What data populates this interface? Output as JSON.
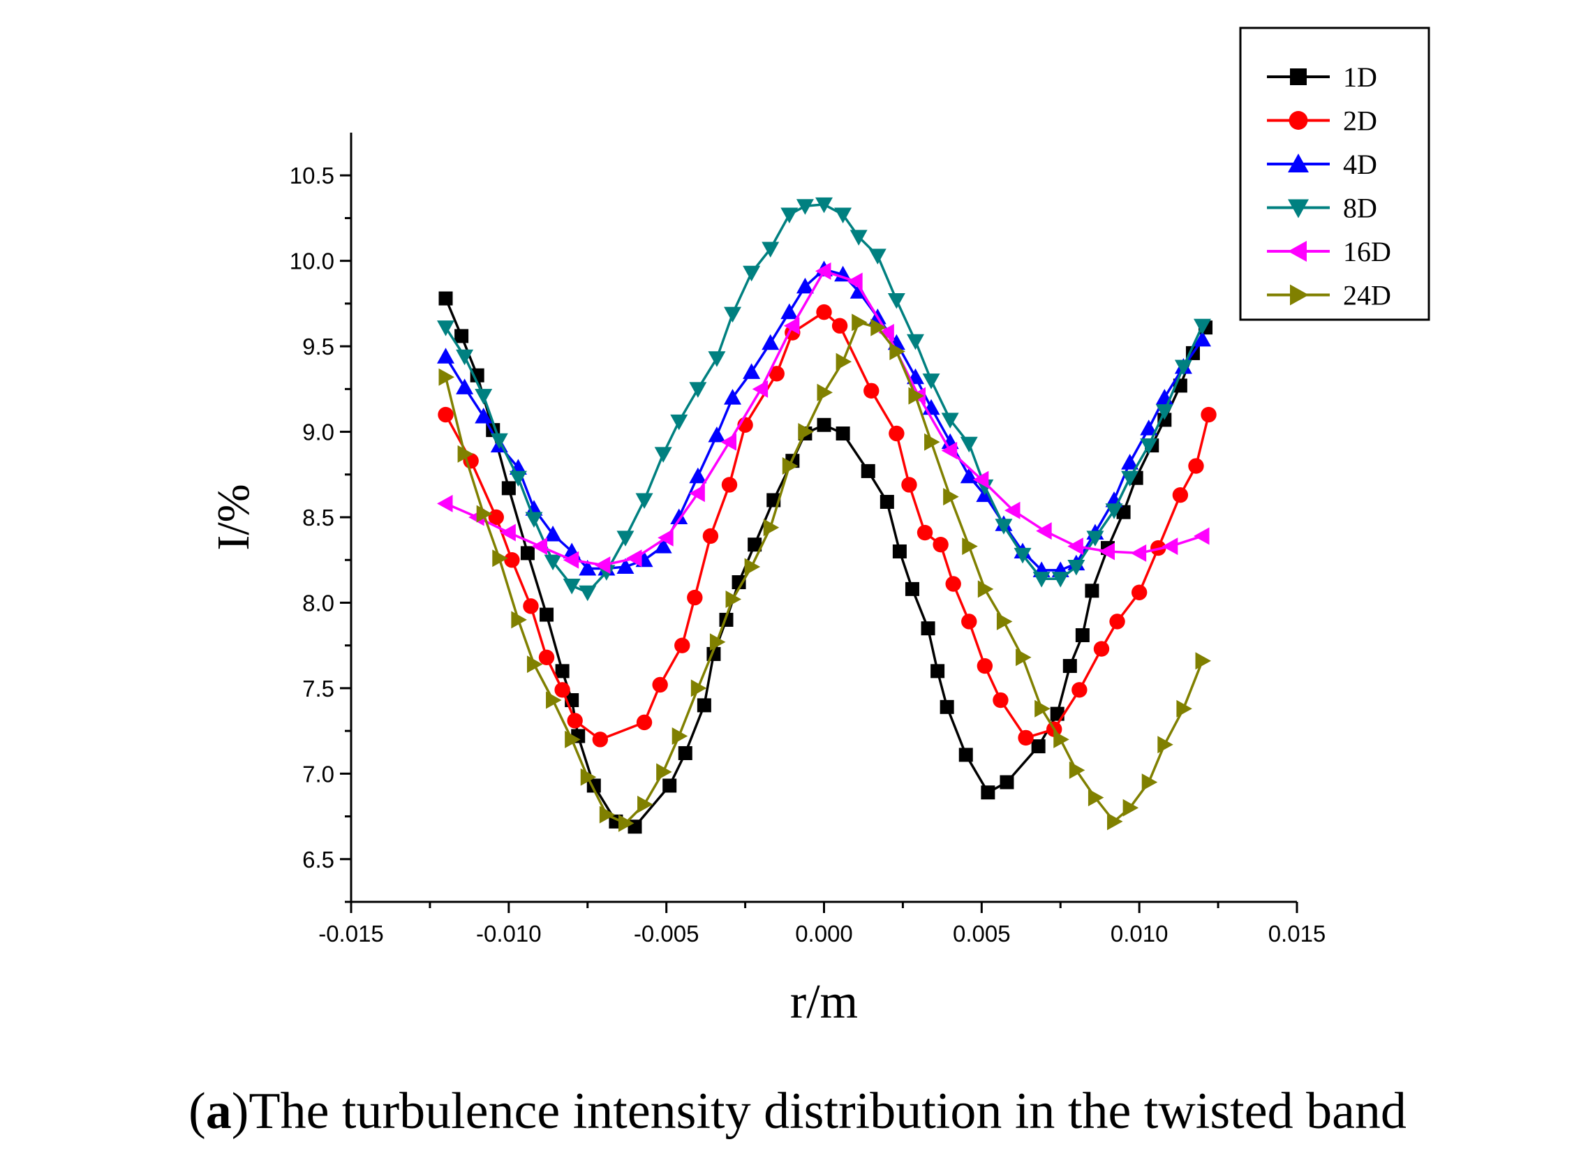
{
  "chart_data": {
    "type": "line",
    "title": "",
    "xlabel": "r/m",
    "ylabel": "I/%",
    "xlim": [
      -0.015,
      0.015
    ],
    "ylim": [
      6.25,
      10.75
    ],
    "x_ticks": [
      -0.015,
      -0.01,
      -0.005,
      0.0,
      0.005,
      0.01,
      0.015
    ],
    "x_tick_labels": [
      "-0.015",
      "-0.010",
      "-0.005",
      "0.000",
      "0.005",
      "0.010",
      "0.015"
    ],
    "y_ticks": [
      6.5,
      7.0,
      7.5,
      8.0,
      8.5,
      9.0,
      9.5,
      10.0,
      10.5
    ],
    "y_tick_labels": [
      "6.5",
      "7.0",
      "7.5",
      "8.0",
      "8.5",
      "9.0",
      "9.5",
      "10.0",
      "10.5"
    ],
    "legend_position": "top-right",
    "series": [
      {
        "name": "1D",
        "color": "#000000",
        "marker": "square",
        "x": [
          -0.012,
          -0.0115,
          -0.011,
          -0.0105,
          -0.01,
          -0.0094,
          -0.0088,
          -0.0083,
          -0.008,
          -0.0078,
          -0.0073,
          -0.0066,
          -0.006,
          -0.0049,
          -0.0044,
          -0.0038,
          -0.0035,
          -0.0031,
          -0.0027,
          -0.0022,
          -0.0016,
          -0.001,
          -0.0006,
          0.0,
          0.0006,
          0.0014,
          0.002,
          0.0024,
          0.0028,
          0.0033,
          0.0036,
          0.0039,
          0.0045,
          0.0052,
          0.0058,
          0.0068,
          0.0074,
          0.0078,
          0.0082,
          0.0085,
          0.009,
          0.0095,
          0.0099,
          0.0104,
          0.0108,
          0.0113,
          0.0117,
          0.0121
        ],
        "y": [
          9.78,
          9.56,
          9.33,
          9.01,
          8.67,
          8.29,
          7.93,
          7.6,
          7.43,
          7.22,
          6.93,
          6.72,
          6.69,
          6.93,
          7.12,
          7.4,
          7.7,
          7.9,
          8.12,
          8.34,
          8.6,
          8.83,
          8.99,
          9.04,
          8.99,
          8.77,
          8.59,
          8.3,
          8.08,
          7.85,
          7.6,
          7.39,
          7.11,
          6.89,
          6.95,
          7.16,
          7.35,
          7.63,
          7.81,
          8.07,
          8.32,
          8.53,
          8.73,
          8.92,
          9.07,
          9.27,
          9.46,
          9.61
        ]
      },
      {
        "name": "2D",
        "color": "#ff0000",
        "marker": "circle",
        "x": [
          -0.012,
          -0.0112,
          -0.0104,
          -0.0099,
          -0.0093,
          -0.0088,
          -0.0083,
          -0.0079,
          -0.0071,
          -0.0057,
          -0.0052,
          -0.0045,
          -0.0041,
          -0.0036,
          -0.003,
          -0.0025,
          -0.0015,
          -0.001,
          0.0,
          0.0005,
          0.0015,
          0.0023,
          0.0027,
          0.0032,
          0.0037,
          0.0041,
          0.0046,
          0.0051,
          0.0056,
          0.0064,
          0.0073,
          0.0081,
          0.0088,
          0.0093,
          0.01,
          0.0106,
          0.0113,
          0.0118,
          0.0122
        ],
        "y": [
          9.1,
          8.83,
          8.5,
          8.25,
          7.98,
          7.68,
          7.49,
          7.31,
          7.2,
          7.3,
          7.52,
          7.75,
          8.03,
          8.39,
          8.69,
          9.04,
          9.34,
          9.58,
          9.7,
          9.62,
          9.24,
          8.99,
          8.69,
          8.41,
          8.34,
          8.11,
          7.89,
          7.63,
          7.43,
          7.21,
          7.26,
          7.49,
          7.73,
          7.89,
          8.06,
          8.32,
          8.63,
          8.8,
          9.1
        ]
      },
      {
        "name": "4D",
        "color": "#0000ff",
        "marker": "triangle-up",
        "x": [
          -0.012,
          -0.0114,
          -0.0108,
          -0.0103,
          -0.0097,
          -0.0092,
          -0.0086,
          -0.008,
          -0.0075,
          -0.0069,
          -0.0063,
          -0.0057,
          -0.0051,
          -0.0046,
          -0.004,
          -0.0034,
          -0.0029,
          -0.0023,
          -0.0017,
          -0.0011,
          -0.0006,
          0.0,
          0.0006,
          0.0011,
          0.0017,
          0.0023,
          0.0029,
          0.0034,
          0.004,
          0.0046,
          0.0051,
          0.0057,
          0.0063,
          0.0069,
          0.0075,
          0.008,
          0.0086,
          0.0092,
          0.0097,
          0.0103,
          0.0108,
          0.0114,
          0.012
        ],
        "y": [
          9.44,
          9.26,
          9.09,
          8.92,
          8.79,
          8.55,
          8.4,
          8.3,
          8.2,
          8.2,
          8.21,
          8.25,
          8.33,
          8.5,
          8.74,
          8.98,
          9.2,
          9.35,
          9.52,
          9.7,
          9.85,
          9.95,
          9.92,
          9.82,
          9.67,
          9.52,
          9.32,
          9.14,
          8.94,
          8.74,
          8.63,
          8.46,
          8.3,
          8.19,
          8.19,
          8.23,
          8.41,
          8.6,
          8.82,
          9.02,
          9.2,
          9.38,
          9.54
        ]
      },
      {
        "name": "8D",
        "color": "#008080",
        "marker": "triangle-down",
        "x": [
          -0.012,
          -0.0114,
          -0.0108,
          -0.0103,
          -0.0097,
          -0.0092,
          -0.0086,
          -0.008,
          -0.0075,
          -0.0069,
          -0.0063,
          -0.0057,
          -0.0051,
          -0.0046,
          -0.004,
          -0.0034,
          -0.0029,
          -0.0023,
          -0.0017,
          -0.0011,
          -0.0006,
          0.0,
          0.0006,
          0.0011,
          0.0017,
          0.0023,
          0.0029,
          0.0034,
          0.004,
          0.0046,
          0.0051,
          0.0057,
          0.0063,
          0.0069,
          0.0075,
          0.008,
          0.0086,
          0.0092,
          0.0097,
          0.0103,
          0.0108,
          0.0114,
          0.012
        ],
        "y": [
          9.61,
          9.44,
          9.21,
          8.95,
          8.73,
          8.49,
          8.24,
          8.1,
          8.06,
          8.18,
          8.38,
          8.6,
          8.87,
          9.06,
          9.25,
          9.43,
          9.69,
          9.93,
          10.07,
          10.27,
          10.32,
          10.33,
          10.27,
          10.14,
          10.03,
          9.77,
          9.53,
          9.3,
          9.07,
          8.93,
          8.68,
          8.45,
          8.28,
          8.14,
          8.14,
          8.21,
          8.38,
          8.54,
          8.73,
          8.92,
          9.12,
          9.38,
          9.62
        ]
      },
      {
        "name": "16D",
        "color": "#ff00ff",
        "marker": "triangle-left",
        "x": [
          -0.012,
          -0.011,
          -0.01,
          -0.009,
          -0.008,
          -0.007,
          -0.006,
          -0.005,
          -0.004,
          -0.003,
          -0.002,
          -0.001,
          0.0,
          0.001,
          0.002,
          0.003,
          0.004,
          0.005,
          0.006,
          0.007,
          0.008,
          0.009,
          0.01,
          0.011,
          0.012
        ],
        "y": [
          8.58,
          8.5,
          8.41,
          8.33,
          8.25,
          8.22,
          8.26,
          8.38,
          8.64,
          8.94,
          9.25,
          9.62,
          9.94,
          9.88,
          9.58,
          9.21,
          8.89,
          8.72,
          8.54,
          8.42,
          8.33,
          8.3,
          8.29,
          8.33,
          8.39
        ]
      },
      {
        "name": "24D",
        "color": "#808000",
        "marker": "triangle-right",
        "x": [
          -0.012,
          -0.0114,
          -0.0108,
          -0.0103,
          -0.0097,
          -0.0092,
          -0.0086,
          -0.008,
          -0.0075,
          -0.0069,
          -0.0063,
          -0.0057,
          -0.0051,
          -0.0046,
          -0.004,
          -0.0034,
          -0.0029,
          -0.0023,
          -0.0017,
          -0.0011,
          -0.0006,
          0.0,
          0.0006,
          0.0011,
          0.0017,
          0.0023,
          0.0029,
          0.0034,
          0.004,
          0.0046,
          0.0051,
          0.0057,
          0.0063,
          0.0069,
          0.0075,
          0.008,
          0.0086,
          0.0092,
          0.0097,
          0.0103,
          0.0108,
          0.0114,
          0.012
        ],
        "y": [
          9.32,
          8.87,
          8.52,
          8.26,
          7.9,
          7.64,
          7.43,
          7.2,
          6.98,
          6.76,
          6.71,
          6.82,
          7.01,
          7.22,
          7.5,
          7.77,
          8.02,
          8.21,
          8.44,
          8.8,
          9.0,
          9.23,
          9.41,
          9.64,
          9.61,
          9.47,
          9.21,
          8.94,
          8.62,
          8.33,
          8.08,
          7.89,
          7.68,
          7.38,
          7.2,
          7.02,
          6.86,
          6.72,
          6.8,
          6.95,
          7.17,
          7.38,
          7.66
        ]
      }
    ]
  },
  "caption": {
    "label": "a",
    "text": "The turbulence intensity distribution in the twisted band"
  }
}
